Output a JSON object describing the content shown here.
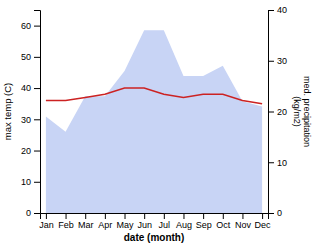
{
  "chart_data": {
    "type": "line",
    "categories": [
      "Jan",
      "Feb",
      "Mar",
      "Apr",
      "May",
      "Jun",
      "Jul",
      "Aug",
      "Sep",
      "Oct",
      "Nov",
      "Dec"
    ],
    "series": [
      {
        "type": "area",
        "color": "#c8d4f5",
        "axis": "y2",
        "values": [
          19,
          16,
          23,
          23,
          28,
          36,
          36,
          27,
          27,
          29,
          22,
          21
        ]
      },
      {
        "type": "line",
        "color": "#cc2222",
        "values": [
          36,
          36,
          37,
          38,
          40,
          40,
          38,
          37,
          38,
          38,
          36,
          35
        ]
      }
    ],
    "xlabel": "date (month)",
    "ylabel": "max temp (C)",
    "y2label": "med. precipitation\n(kg/m2)",
    "ylim": [
      0,
      65
    ],
    "yticks": [
      0,
      10,
      20,
      30,
      40,
      50,
      60
    ],
    "y2lim": [
      0,
      40
    ],
    "y2ticks": [
      0,
      10,
      20,
      30,
      40
    ],
    "grid": false
  }
}
